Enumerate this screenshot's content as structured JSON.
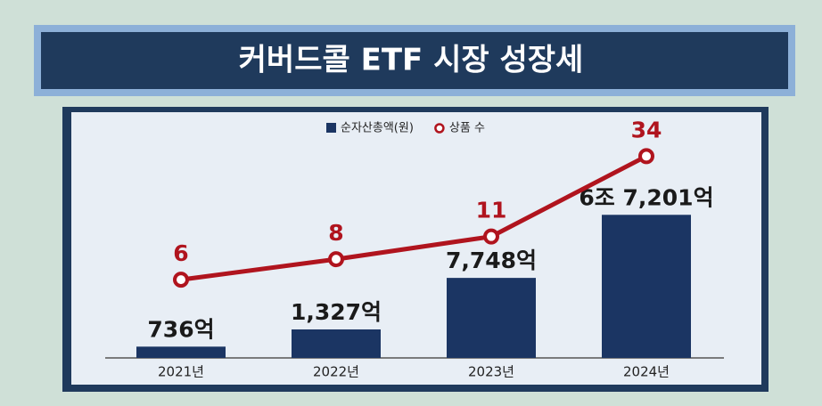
{
  "chart_data": {
    "type": "bar",
    "title": "커버드콜 ETF 시장 성장세",
    "categories": [
      "2021년",
      "2022년",
      "2023년",
      "2024년"
    ],
    "series": [
      {
        "name": "순자산총액(원)",
        "type": "bar",
        "color": "#1b3563",
        "values": [
          736,
          1327,
          7748,
          67201
        ],
        "value_labels": [
          "736억",
          "1,327억",
          "7,748억",
          "6조 7,201억"
        ]
      },
      {
        "name": "상품 수",
        "type": "line",
        "color": "#b0141e",
        "axis": "y2",
        "values": [
          6,
          8,
          11,
          34
        ]
      }
    ],
    "log_scale": true,
    "ylim": [
      500,
      2000000
    ],
    "y2lim": [
      2,
      60
    ],
    "legend": "top"
  }
}
